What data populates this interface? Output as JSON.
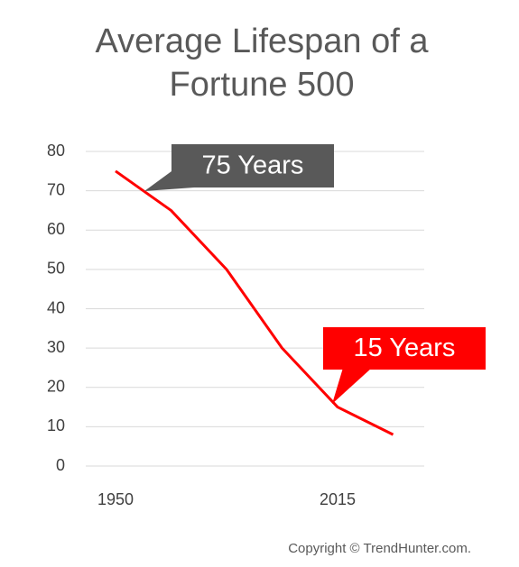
{
  "chart_data": {
    "type": "line",
    "title": "Average Lifespan of a Fortune 500",
    "categories": [
      "1950",
      null,
      null,
      null,
      "2015",
      null
    ],
    "series": [
      {
        "name": "Average Lifespan",
        "color": "#ff0000",
        "values": [
          75,
          65,
          50,
          30,
          15,
          8
        ]
      }
    ],
    "ylim": [
      0,
      80
    ],
    "yticks": [
      0,
      10,
      20,
      30,
      40,
      50,
      60,
      70,
      80
    ],
    "grid": true,
    "annotations": [
      {
        "text": "75 Years",
        "color": "#595959"
      },
      {
        "text": "15 Years",
        "color": "#ff0000"
      }
    ],
    "footer": "Copyright © TrendHunter.com."
  }
}
